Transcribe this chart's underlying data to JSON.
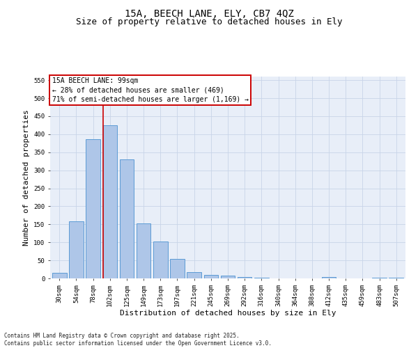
{
  "title_line1": "15A, BEECH LANE, ELY, CB7 4QZ",
  "title_line2": "Size of property relative to detached houses in Ely",
  "xlabel": "Distribution of detached houses by size in Ely",
  "ylabel": "Number of detached properties",
  "categories": [
    "30sqm",
    "54sqm",
    "78sqm",
    "102sqm",
    "125sqm",
    "149sqm",
    "173sqm",
    "197sqm",
    "221sqm",
    "245sqm",
    "269sqm",
    "292sqm",
    "316sqm",
    "340sqm",
    "364sqm",
    "388sqm",
    "412sqm",
    "435sqm",
    "459sqm",
    "483sqm",
    "507sqm"
  ],
  "values": [
    15,
    158,
    387,
    425,
    330,
    153,
    103,
    55,
    18,
    10,
    8,
    4,
    2,
    0,
    0,
    0,
    3,
    0,
    0,
    2,
    2
  ],
  "bar_color": "#aec6e8",
  "bar_edge_color": "#5b9bd5",
  "vline_color": "#cc0000",
  "vline_x": 2.575,
  "annotation_box_text": "15A BEECH LANE: 99sqm\n← 28% of detached houses are smaller (469)\n71% of semi-detached houses are larger (1,169) →",
  "annotation_box_color": "#cc0000",
  "ylim": [
    0,
    560
  ],
  "yticks": [
    0,
    50,
    100,
    150,
    200,
    250,
    300,
    350,
    400,
    450,
    500,
    550
  ],
  "grid_color": "#c8d4e8",
  "background_color": "#e8eef8",
  "footer_text": "Contains HM Land Registry data © Crown copyright and database right 2025.\nContains public sector information licensed under the Open Government Licence v3.0.",
  "title_fontsize": 10,
  "subtitle_fontsize": 9,
  "tick_fontsize": 6.5,
  "label_fontsize": 8,
  "annot_fontsize": 7,
  "footer_fontsize": 5.5
}
